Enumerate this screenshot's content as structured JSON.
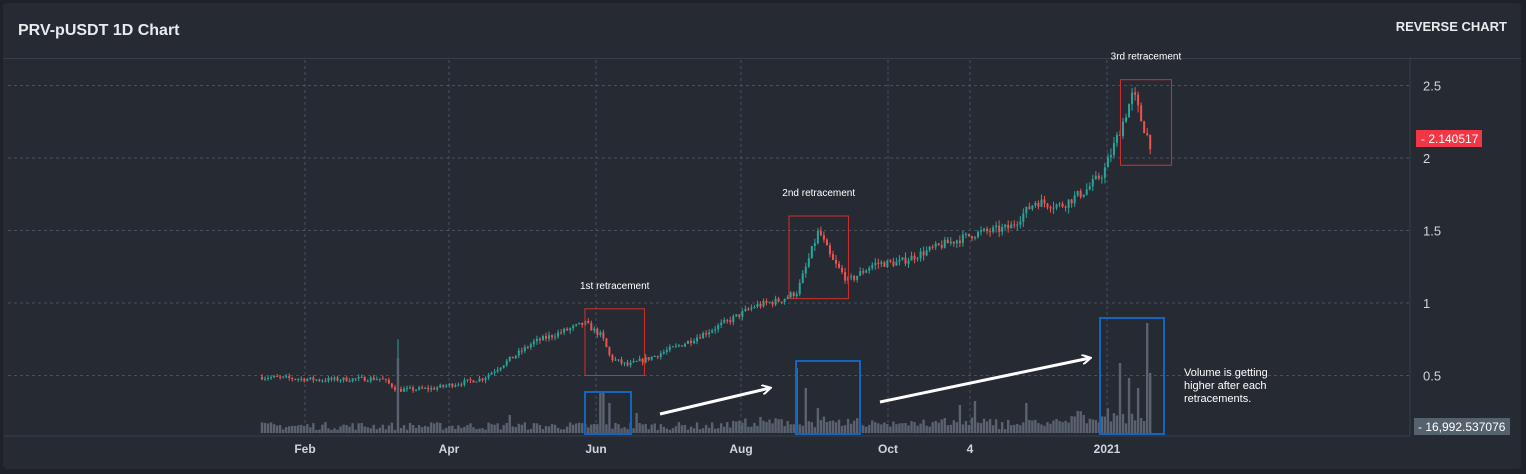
{
  "header": {
    "title": "PRV-pUSDT 1D Chart",
    "reverse_label": "REVERSE CHART"
  },
  "chart_data": {
    "type": "candlestick",
    "title": "PRV-pUSDT 1D Chart",
    "x_ticks": [
      "Feb",
      "Apr",
      "Jun",
      "Aug",
      "Oct",
      "4",
      "2021"
    ],
    "y_ticks": [
      0.5,
      1,
      1.5,
      2,
      2.5
    ],
    "ylim": [
      0.14,
      2.64
    ],
    "grid": true,
    "last_price": "2.140517",
    "last_volume": "16,992.537076",
    "price_key_points": [
      {
        "t": 0,
        "p": 0.49
      },
      {
        "t": 0.07,
        "p": 0.47
      },
      {
        "t": 0.14,
        "p": 0.48
      },
      {
        "t": 0.16,
        "p": 0.4
      },
      {
        "t": 0.2,
        "p": 0.41
      },
      {
        "t": 0.26,
        "p": 0.48
      },
      {
        "t": 0.32,
        "p": 0.73
      },
      {
        "t": 0.38,
        "p": 0.86
      },
      {
        "t": 0.4,
        "p": 0.77
      },
      {
        "t": 0.41,
        "p": 0.62
      },
      {
        "t": 0.43,
        "p": 0.57
      },
      {
        "t": 0.46,
        "p": 0.63
      },
      {
        "t": 0.5,
        "p": 0.73
      },
      {
        "t": 0.55,
        "p": 0.88
      },
      {
        "t": 0.58,
        "p": 0.98
      },
      {
        "t": 0.61,
        "p": 1.02
      },
      {
        "t": 0.63,
        "p": 1.08
      },
      {
        "t": 0.655,
        "p": 1.5
      },
      {
        "t": 0.67,
        "p": 1.3
      },
      {
        "t": 0.69,
        "p": 1.15
      },
      {
        "t": 0.72,
        "p": 1.27
      },
      {
        "t": 0.75,
        "p": 1.28
      },
      {
        "t": 0.8,
        "p": 1.4
      },
      {
        "t": 0.84,
        "p": 1.48
      },
      {
        "t": 0.88,
        "p": 1.52
      },
      {
        "t": 0.91,
        "p": 1.7
      },
      {
        "t": 0.94,
        "p": 1.67
      },
      {
        "t": 0.97,
        "p": 1.78
      },
      {
        "t": 0.99,
        "p": 1.9
      },
      {
        "t": 1.01,
        "p": 2.2
      },
      {
        "t": 1.025,
        "p": 2.45
      },
      {
        "t": 1.035,
        "p": 2.25
      },
      {
        "t": 1.045,
        "p": 2.1
      }
    ],
    "annotations": [
      {
        "label": "1st retracement",
        "box": [
          0.38,
          0.45,
          0.5,
          0.96
        ]
      },
      {
        "label": "2nd retracement",
        "box": [
          0.62,
          0.69,
          1.03,
          1.6
        ]
      },
      {
        "label": "3rd retracement",
        "box": [
          1.01,
          1.07,
          1.95,
          2.54
        ]
      }
    ],
    "volume_note": "Volume is getting higher after each retracements.",
    "volume_note_lines": [
      "Volume is getting",
      "higher after each",
      "retracements."
    ]
  },
  "colors": {
    "up": "#26a69a",
    "down": "#ef5350",
    "volume": "#5a6270",
    "grid": "#4a4f5a",
    "retracement_box": "#d32f2f",
    "volume_box": "#1565c0",
    "price_label_bg": "#f23645",
    "volume_label_bg": "#56616e"
  }
}
